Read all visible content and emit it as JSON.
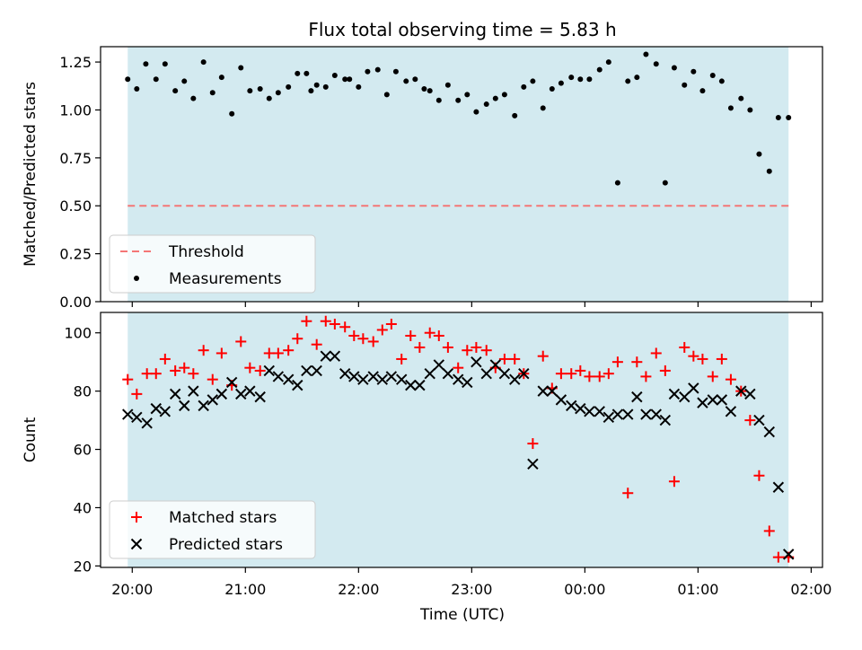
{
  "chart_data": {
    "title": "Flux total observing time = 5.83 h",
    "xlabel": "Time (UTC)",
    "x_tick_labels": [
      "20:00",
      "21:00",
      "22:00",
      "23:00",
      "00:00",
      "01:00",
      "02:00"
    ],
    "x_tick_hours": [
      0,
      1,
      2,
      3,
      4,
      5,
      6
    ],
    "xlim_hours": [
      -0.28,
      6.1
    ],
    "shaded_span_hours": [
      -0.04,
      5.8
    ],
    "shade_color": "#d3eaf0",
    "panels": [
      {
        "type": "scatter",
        "ylabel": "Matched/Predicted stars",
        "ylim": [
          0,
          1.33
        ],
        "y_ticks": [
          0.0,
          0.25,
          0.5,
          0.75,
          1.0,
          1.25
        ],
        "y_tick_labels": [
          "0.00",
          "0.25",
          "0.50",
          "0.75",
          "1.00",
          "1.25"
        ],
        "threshold": 0.5,
        "threshold_color": "#f47676",
        "legend": {
          "position": "lower-left",
          "entries": [
            "Threshold",
            "Measurements"
          ]
        },
        "series": [
          {
            "name": "Measurements",
            "color": "#000000",
            "marker": "dot",
            "x": [
              -0.04,
              0.04,
              0.12,
              0.21,
              0.29,
              0.38,
              0.46,
              0.54,
              0.63,
              0.71,
              0.79,
              0.88,
              0.96,
              1.04,
              1.13,
              1.21,
              1.29,
              1.38,
              1.46,
              1.54,
              1.58,
              1.63,
              1.71,
              1.79,
              1.88,
              1.92,
              2.0,
              2.08,
              2.17,
              2.25,
              2.33,
              2.42,
              2.5,
              2.58,
              2.63,
              2.71,
              2.79,
              2.88,
              2.96,
              3.04,
              3.13,
              3.21,
              3.29,
              3.38,
              3.46,
              3.54,
              3.63,
              3.71,
              3.79,
              3.88,
              3.96,
              4.04,
              4.13,
              4.21,
              4.29,
              4.38,
              4.46,
              4.54,
              4.63,
              4.71,
              4.79,
              4.88,
              4.96,
              5.04,
              5.13,
              5.21,
              5.29,
              5.38,
              5.46,
              5.54,
              5.63,
              5.71,
              5.8
            ],
            "y": [
              1.16,
              1.11,
              1.24,
              1.16,
              1.24,
              1.1,
              1.15,
              1.06,
              1.25,
              1.09,
              1.17,
              0.98,
              1.22,
              1.1,
              1.11,
              1.06,
              1.09,
              1.12,
              1.19,
              1.19,
              1.1,
              1.13,
              1.12,
              1.18,
              1.16,
              1.16,
              1.12,
              1.2,
              1.21,
              1.08,
              1.2,
              1.15,
              1.16,
              1.11,
              1.1,
              1.05,
              1.13,
              1.05,
              1.08,
              0.99,
              1.03,
              1.06,
              1.08,
              0.97,
              1.12,
              1.15,
              1.01,
              1.11,
              1.14,
              1.17,
              1.16,
              1.16,
              1.21,
              1.25,
              0.62,
              1.15,
              1.17,
              1.29,
              1.24,
              0.62,
              1.22,
              1.13,
              1.2,
              1.1,
              1.18,
              1.15,
              1.01,
              1.06,
              1.0,
              0.77,
              0.68,
              0.96,
              0.96
            ]
          }
        ]
      },
      {
        "type": "scatter",
        "ylabel": "Count",
        "ylim": [
          19.5,
          107
        ],
        "y_ticks": [
          20,
          40,
          60,
          80,
          100
        ],
        "y_tick_labels": [
          "20",
          "40",
          "60",
          "80",
          "100"
        ],
        "legend": {
          "position": "lower-left",
          "entries": [
            "Matched stars",
            "Predicted stars"
          ]
        },
        "series": [
          {
            "name": "Matched stars",
            "color": "#ff0000",
            "marker": "plus",
            "x": [
              -0.04,
              0.04,
              0.13,
              0.21,
              0.29,
              0.38,
              0.46,
              0.54,
              0.63,
              0.71,
              0.79,
              0.88,
              0.96,
              1.04,
              1.13,
              1.21,
              1.29,
              1.38,
              1.46,
              1.54,
              1.63,
              1.71,
              1.79,
              1.88,
              1.96,
              2.04,
              2.13,
              2.21,
              2.29,
              2.38,
              2.46,
              2.54,
              2.63,
              2.71,
              2.79,
              2.88,
              2.96,
              3.04,
              3.13,
              3.21,
              3.29,
              3.38,
              3.46,
              3.54,
              3.63,
              3.71,
              3.79,
              3.88,
              3.96,
              4.04,
              4.13,
              4.21,
              4.29,
              4.38,
              4.46,
              4.54,
              4.63,
              4.71,
              4.79,
              4.88,
              4.96,
              5.04,
              5.13,
              5.21,
              5.29,
              5.38,
              5.46,
              5.54,
              5.63,
              5.71,
              5.8
            ],
            "y": [
              84,
              79,
              86,
              86,
              91,
              87,
              88,
              86,
              94,
              84,
              93,
              82,
              97,
              88,
              87,
              93,
              93,
              94,
              98,
              104,
              96,
              104,
              103,
              102,
              99,
              98,
              97,
              101,
              103,
              91,
              99,
              95,
              100,
              99,
              95,
              88,
              94,
              95,
              94,
              88,
              91,
              91,
              86,
              62,
              92,
              81,
              86,
              86,
              87,
              85,
              85,
              86,
              90,
              45,
              90,
              85,
              93,
              87,
              49,
              95,
              92,
              91,
              85,
              91,
              84,
              80,
              70,
              51,
              32,
              23,
              23
            ]
          },
          {
            "name": "Predicted stars",
            "color": "#000000",
            "marker": "x",
            "x": [
              -0.04,
              0.04,
              0.13,
              0.21,
              0.29,
              0.38,
              0.46,
              0.54,
              0.63,
              0.71,
              0.79,
              0.88,
              0.96,
              1.04,
              1.13,
              1.21,
              1.29,
              1.38,
              1.46,
              1.54,
              1.63,
              1.71,
              1.79,
              1.88,
              1.96,
              2.04,
              2.13,
              2.21,
              2.29,
              2.38,
              2.46,
              2.54,
              2.63,
              2.71,
              2.79,
              2.88,
              2.96,
              3.04,
              3.13,
              3.21,
              3.29,
              3.38,
              3.46,
              3.54,
              3.63,
              3.71,
              3.79,
              3.88,
              3.96,
              4.04,
              4.13,
              4.21,
              4.29,
              4.38,
              4.46,
              4.54,
              4.63,
              4.71,
              4.79,
              4.88,
              4.96,
              5.04,
              5.13,
              5.21,
              5.29,
              5.38,
              5.46,
              5.54,
              5.63,
              5.71,
              5.8
            ],
            "y": [
              72,
              71,
              69,
              74,
              73,
              79,
              75,
              80,
              75,
              77,
              79,
              83,
              79,
              80,
              78,
              87,
              85,
              84,
              82,
              87,
              87,
              92,
              92,
              86,
              85,
              84,
              85,
              84,
              85,
              84,
              82,
              82,
              86,
              89,
              86,
              84,
              83,
              90,
              86,
              89,
              86,
              84,
              86,
              55,
              80,
              80,
              77,
              75,
              74,
              73,
              73,
              71,
              72,
              72,
              78,
              72,
              72,
              70,
              79,
              78,
              81,
              76,
              77,
              77,
              73,
              80,
              79,
              70,
              66,
              47,
              24
            ]
          }
        ]
      }
    ]
  }
}
